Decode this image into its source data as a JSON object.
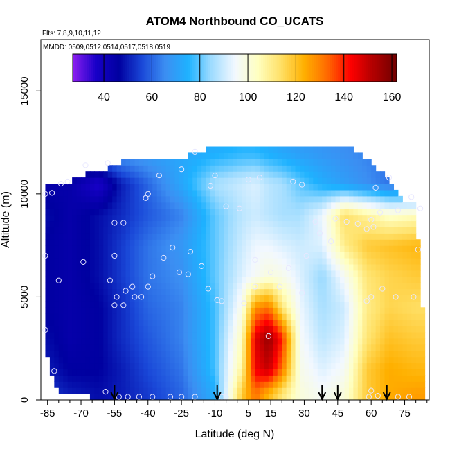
{
  "chart_data": {
    "type": "heatmap",
    "title": "ATOM4 Northbound CO_UCATS",
    "subtitle_flights": "Flts: 7,8,9,10,11,12",
    "subtitle_dates": "MMDD: 0509,0512,0514,0517,0518,0519",
    "xlabel": "Latitude (deg N)",
    "ylabel": "Altitude (m)",
    "xlim": [
      -88,
      86
    ],
    "ylim": [
      0,
      17500
    ],
    "x_ticks": [
      -85,
      -70,
      -55,
      -40,
      -25,
      -10,
      5,
      15,
      30,
      45,
      60,
      75
    ],
    "x_tick_labels": [
      "-85",
      "-70",
      "-55",
      "-40",
      "-25",
      "-10",
      "5",
      "15",
      "30",
      "45",
      "60",
      "75"
    ],
    "y_ticks": [
      0,
      5000,
      10000,
      15000
    ],
    "y_tick_labels": [
      "0",
      "5000",
      "10000",
      "15000"
    ],
    "colorbar": {
      "range": [
        27,
        162
      ],
      "ticks": [
        40,
        60,
        80,
        100,
        120,
        140,
        160
      ],
      "tick_labels": [
        "40",
        "60",
        "80",
        "100",
        "120",
        "140",
        "160"
      ],
      "palette": [
        "#8c1ef0",
        "#1800c8",
        "#0000a0",
        "#1a48d8",
        "#3c8ef2",
        "#1eb2ff",
        "#9fdcff",
        "#f2f8ff",
        "#ffffc0",
        "#ffe066",
        "#ffb000",
        "#ff6a00",
        "#ff0000",
        "#b00000",
        "#700000"
      ]
    },
    "latitude_nodes": [
      -86,
      -75,
      -62,
      -52,
      -40,
      -25,
      -10,
      2,
      8,
      14,
      20,
      28,
      38,
      48,
      58,
      68,
      80
    ],
    "altitude_nodes": [
      300,
      1500,
      3000,
      4500,
      6000,
      7500,
      9000,
      10500,
      12000
    ],
    "co_grid_ppb": [
      [
        54,
        50,
        48,
        50,
        54,
        60,
        74,
        118,
        132,
        122,
        112,
        100,
        96,
        100,
        118,
        124,
        126
      ],
      [
        50,
        46,
        46,
        50,
        56,
        62,
        78,
        108,
        144,
        150,
        132,
        98,
        92,
        96,
        118,
        124,
        122
      ],
      [
        48,
        44,
        46,
        52,
        58,
        64,
        78,
        104,
        146,
        156,
        140,
        96,
        88,
        92,
        112,
        120,
        118
      ],
      [
        46,
        44,
        46,
        52,
        60,
        64,
        78,
        98,
        128,
        132,
        112,
        94,
        86,
        90,
        110,
        116,
        114
      ],
      [
        46,
        44,
        48,
        54,
        62,
        66,
        80,
        92,
        96,
        100,
        98,
        92,
        84,
        96,
        112,
        116,
        118
      ],
      [
        46,
        44,
        48,
        54,
        62,
        68,
        80,
        90,
        94,
        94,
        92,
        90,
        92,
        110,
        118,
        120,
        122
      ],
      [
        48,
        44,
        48,
        52,
        58,
        64,
        80,
        88,
        90,
        88,
        86,
        86,
        94,
        114,
        108,
        102,
        104
      ],
      [
        44,
        44,
        36,
        50,
        60,
        72,
        86,
        90,
        92,
        88,
        86,
        80,
        74,
        70,
        66,
        62,
        60
      ],
      [
        60,
        62,
        64,
        68,
        70,
        72,
        74,
        76,
        76,
        74,
        72,
        70,
        68,
        66,
        64,
        62,
        60
      ]
    ],
    "boundary": [
      {
        "lat": -86,
        "top": 10500,
        "bottom": 3200
      },
      {
        "lat": -84,
        "top": 10500,
        "bottom": 1300
      },
      {
        "lat": -80,
        "top": 10500,
        "bottom": 400
      },
      {
        "lat": -75,
        "top": 10500,
        "bottom": 300
      },
      {
        "lat": -70,
        "top": 10900,
        "bottom": 300
      },
      {
        "lat": -60,
        "top": 11100,
        "bottom": 0
      },
      {
        "lat": -50,
        "top": 11600,
        "bottom": 0
      },
      {
        "lat": -40,
        "top": 11850,
        "bottom": 0
      },
      {
        "lat": -30,
        "top": 11700,
        "bottom": 0
      },
      {
        "lat": -20,
        "top": 11900,
        "bottom": 0
      },
      {
        "lat": -10,
        "top": 12300,
        "bottom": 0
      },
      {
        "lat": 20,
        "top": 12300,
        "bottom": 0
      },
      {
        "lat": 40,
        "top": 12350,
        "bottom": 0
      },
      {
        "lat": 50,
        "top": 12300,
        "bottom": 0
      },
      {
        "lat": 60,
        "top": 11500,
        "bottom": 0
      },
      {
        "lat": 65,
        "top": 11000,
        "bottom": 0
      },
      {
        "lat": 70,
        "top": 10200,
        "bottom": 0
      },
      {
        "lat": 75,
        "top": 9700,
        "bottom": 0
      },
      {
        "lat": 80,
        "top": 9500,
        "bottom": 0
      },
      {
        "lat": 83,
        "top": 4600,
        "bottom": 0
      }
    ],
    "observation_points": [
      {
        "lat": -86,
        "alt": 10000
      },
      {
        "lat": -83,
        "alt": 10050
      },
      {
        "lat": -79,
        "alt": 10500
      },
      {
        "lat": -76,
        "alt": 10600
      },
      {
        "lat": -68,
        "alt": 11400
      },
      {
        "lat": -58,
        "alt": 11500
      },
      {
        "lat": -40,
        "alt": 10000
      },
      {
        "lat": -41,
        "alt": 9800
      },
      {
        "lat": -35,
        "alt": 10900
      },
      {
        "lat": -25,
        "alt": 11200
      },
      {
        "lat": -19,
        "alt": 12050
      },
      {
        "lat": -12,
        "alt": 10400
      },
      {
        "lat": -10,
        "alt": 10900
      },
      {
        "lat": 5,
        "alt": 10700
      },
      {
        "lat": 10,
        "alt": 10800
      },
      {
        "lat": 25,
        "alt": 10600
      },
      {
        "lat": 29,
        "alt": 10450
      },
      {
        "lat": 62,
        "alt": 10300
      },
      {
        "lat": 68,
        "alt": 10800
      },
      {
        "lat": 78,
        "alt": 9850
      },
      {
        "lat": -5,
        "alt": 9400
      },
      {
        "lat": 1,
        "alt": 9300
      },
      {
        "lat": -55,
        "alt": 8600
      },
      {
        "lat": -51,
        "alt": 8600
      },
      {
        "lat": 35,
        "alt": 8650
      },
      {
        "lat": 44,
        "alt": 8800
      },
      {
        "lat": 49,
        "alt": 8650
      },
      {
        "lat": 54,
        "alt": 8550
      },
      {
        "lat": 58,
        "alt": 8300
      },
      {
        "lat": 60,
        "alt": 8750
      },
      {
        "lat": 61,
        "alt": 8400
      },
      {
        "lat": 64,
        "alt": 9100
      },
      {
        "lat": 72,
        "alt": 9200
      },
      {
        "lat": 82,
        "alt": 9300
      },
      {
        "lat": 37,
        "alt": 8100
      },
      {
        "lat": 42,
        "alt": 7700
      },
      {
        "lat": -29,
        "alt": 7400
      },
      {
        "lat": -21,
        "alt": 7200
      },
      {
        "lat": -33,
        "alt": 6900
      },
      {
        "lat": 8,
        "alt": 6800
      },
      {
        "lat": 15,
        "alt": 6200
      },
      {
        "lat": 23,
        "alt": 6400
      },
      {
        "lat": 31,
        "alt": 7000
      },
      {
        "lat": 81,
        "alt": 7300
      },
      {
        "lat": -86,
        "alt": 7000
      },
      {
        "lat": -55,
        "alt": 7000
      },
      {
        "lat": -69,
        "alt": 6700
      },
      {
        "lat": -16,
        "alt": 6500
      },
      {
        "lat": -26,
        "alt": 6200
      },
      {
        "lat": -22,
        "alt": 6100
      },
      {
        "lat": -38,
        "alt": 6000
      },
      {
        "lat": -80,
        "alt": 5800
      },
      {
        "lat": -57,
        "alt": 5800
      },
      {
        "lat": -47,
        "alt": 5500
      },
      {
        "lat": -50,
        "alt": 5300
      },
      {
        "lat": -40,
        "alt": 5500
      },
      {
        "lat": -13,
        "alt": 5400
      },
      {
        "lat": 8,
        "alt": 5500
      },
      {
        "lat": -46,
        "alt": 5000
      },
      {
        "lat": -54,
        "alt": 5000
      },
      {
        "lat": -43,
        "alt": 5000
      },
      {
        "lat": 19,
        "alt": 5500
      },
      {
        "lat": 29,
        "alt": 5200
      },
      {
        "lat": 65,
        "alt": 5400
      },
      {
        "lat": 60,
        "alt": 5000
      },
      {
        "lat": 71,
        "alt": 5000
      },
      {
        "lat": 79,
        "alt": 5000
      },
      {
        "lat": -55,
        "alt": 4600
      },
      {
        "lat": -51,
        "alt": 4600
      },
      {
        "lat": -9,
        "alt": 4850
      },
      {
        "lat": -7,
        "alt": 4800
      },
      {
        "lat": 3,
        "alt": 4700
      },
      {
        "lat": 14,
        "alt": 3100
      },
      {
        "lat": 58,
        "alt": 4800
      },
      {
        "lat": -86,
        "alt": 3400
      },
      {
        "lat": -82,
        "alt": 1400
      },
      {
        "lat": -59,
        "alt": 400
      },
      {
        "lat": -53,
        "alt": 150
      },
      {
        "lat": -49,
        "alt": 150
      },
      {
        "lat": -44,
        "alt": 150
      },
      {
        "lat": -38,
        "alt": 150
      },
      {
        "lat": -30,
        "alt": 150
      },
      {
        "lat": -25,
        "alt": 150
      },
      {
        "lat": -19,
        "alt": 150
      },
      {
        "lat": -7,
        "alt": 150
      },
      {
        "lat": -5,
        "alt": 150
      },
      {
        "lat": 59,
        "alt": 150
      },
      {
        "lat": 60,
        "alt": 450
      },
      {
        "lat": 63,
        "alt": 200
      },
      {
        "lat": 72,
        "alt": 150
      },
      {
        "lat": 77,
        "alt": 150
      }
    ],
    "arrow_latitudes": [
      -55,
      -9,
      38,
      45,
      67
    ]
  }
}
